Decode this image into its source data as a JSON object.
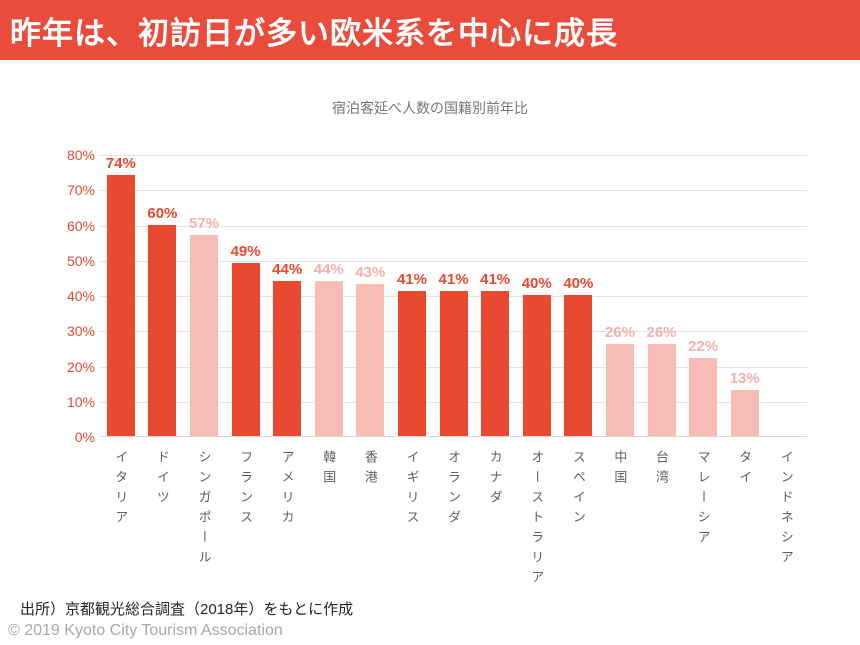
{
  "banner": {
    "title": "昨年は、初訪日が多い欧米系を中心に成長",
    "background_color": "#EA4C3C",
    "text_color": "#ffffff"
  },
  "chart_data": {
    "type": "bar",
    "title": "宿泊客延べ人数の国籍別前年比",
    "categories": [
      "イタリア",
      "ドイツ",
      "シンガポール",
      "フランス",
      "アメリカ",
      "韓国",
      "香港",
      "イギリス",
      "オランダ",
      "カナダ",
      "オーストラリア",
      "スペイン",
      "中国",
      "台湾",
      "マレーシア",
      "タイ",
      "インドネシア"
    ],
    "values": [
      74,
      60,
      57,
      49,
      44,
      44,
      43,
      41,
      41,
      41,
      40,
      40,
      26,
      26,
      22,
      13,
      null
    ],
    "value_labels": [
      "74%",
      "60%",
      "57%",
      "49%",
      "44%",
      "44%",
      "43%",
      "41%",
      "41%",
      "41%",
      "40%",
      "40%",
      "26%",
      "26%",
      "22%",
      "13%",
      ""
    ],
    "emphasis": [
      true,
      true,
      false,
      true,
      true,
      false,
      false,
      true,
      true,
      true,
      true,
      true,
      false,
      false,
      false,
      false,
      false
    ],
    "y_ticks": [
      "80%",
      "70%",
      "60%",
      "50%",
      "40%",
      "30%",
      "20%",
      "10%",
      "0%"
    ],
    "ylim": [
      0,
      80
    ],
    "ytick_step": 10,
    "grid": true,
    "legend": "none",
    "colors": {
      "highlight_bar": "#E8492F",
      "muted_bar": "#F7BCB4",
      "highlight_label": "#E8492F",
      "muted_label": "#F3B1AA",
      "axis_label": "#E8492F",
      "gridline": "#E4E4E4"
    }
  },
  "footer": {
    "source_note": "出所）京都観光総合調査（2018年）をもとに作成",
    "copyright": "© 2019 Kyoto City Tourism Association"
  }
}
